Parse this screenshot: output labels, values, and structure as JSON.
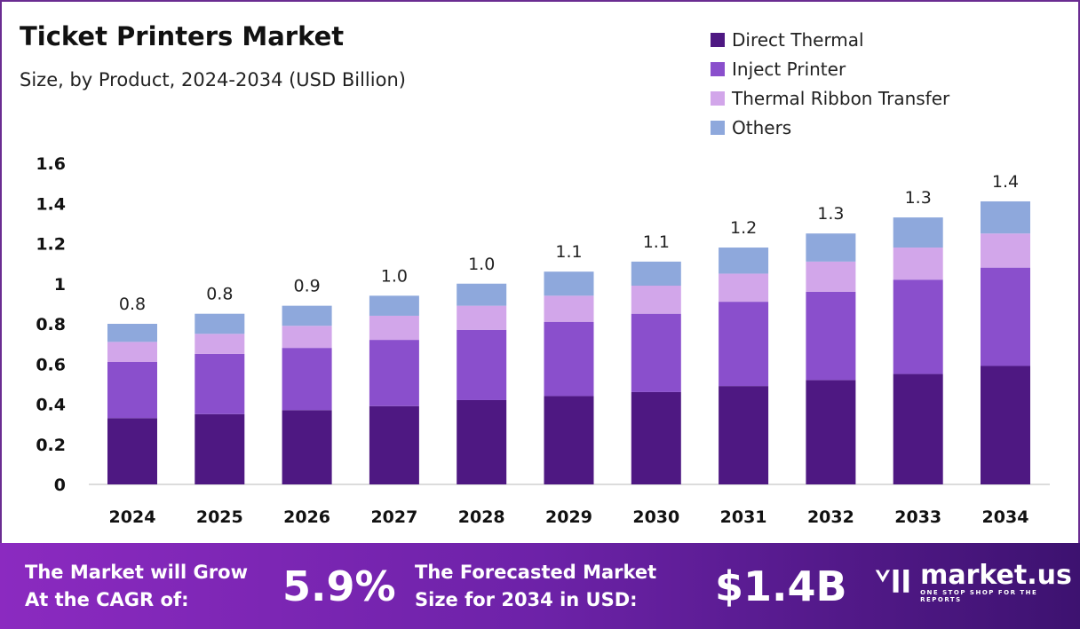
{
  "chart_data": {
    "type": "stacked-bar",
    "title": "Ticket Printers Market",
    "subtitle": "Size, by Product, 2024-2034 (USD Billion)",
    "categories": [
      "2024",
      "2025",
      "2026",
      "2027",
      "2028",
      "2029",
      "2030",
      "2031",
      "2032",
      "2033",
      "2034"
    ],
    "series": [
      {
        "name": "Direct Thermal",
        "color": "#4e1882",
        "values": [
          0.33,
          0.35,
          0.37,
          0.39,
          0.42,
          0.44,
          0.46,
          0.49,
          0.52,
          0.55,
          0.59
        ]
      },
      {
        "name": "Inject Printer",
        "color": "#8a4fcc",
        "values": [
          0.28,
          0.3,
          0.31,
          0.33,
          0.35,
          0.37,
          0.39,
          0.42,
          0.44,
          0.47,
          0.49
        ]
      },
      {
        "name": "Thermal Ribbon Transfer",
        "color": "#d2a6ea",
        "values": [
          0.1,
          0.1,
          0.11,
          0.12,
          0.12,
          0.13,
          0.14,
          0.14,
          0.15,
          0.16,
          0.17
        ]
      },
      {
        "name": "Others",
        "color": "#8ea8dc",
        "values": [
          0.09,
          0.1,
          0.1,
          0.1,
          0.11,
          0.12,
          0.12,
          0.13,
          0.14,
          0.15,
          0.16
        ]
      }
    ],
    "totals_labels": [
      "0.8",
      "0.8",
      "0.9",
      "1.0",
      "1.0",
      "1.1",
      "1.1",
      "1.2",
      "1.3",
      "1.3",
      "1.4"
    ],
    "yticks": [
      "0",
      "0.2",
      "0.4",
      "0.6",
      "0.8",
      "1",
      "1.2",
      "1.4",
      "1.6"
    ],
    "ylim": [
      0,
      1.6
    ],
    "grid": false,
    "legend_position": "top-right"
  },
  "footer": {
    "cagr_label_1": "The Market will Grow",
    "cagr_label_2": "At the CAGR of:",
    "cagr_value": "5.9%",
    "forecast_label_1": "The Forecasted Market",
    "forecast_label_2": "Size for 2034 in USD:",
    "forecast_value": "$1.4B",
    "brand": "market.us",
    "tagline": "ONE STOP SHOP FOR THE REPORTS"
  }
}
